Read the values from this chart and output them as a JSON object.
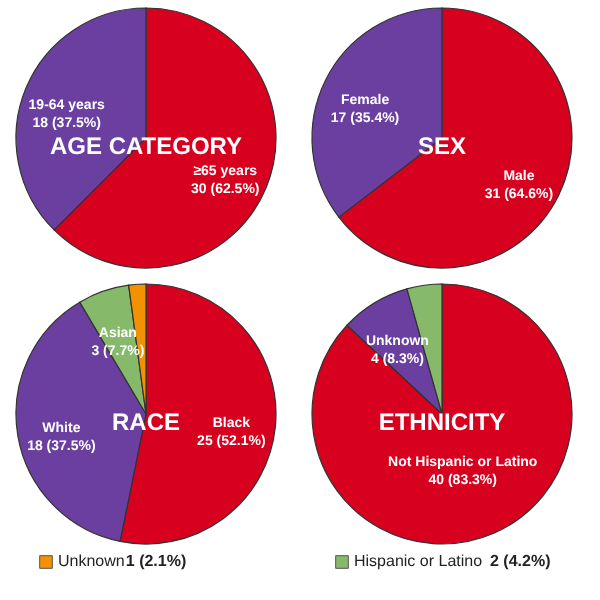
{
  "chart_data": [
    {
      "type": "pie",
      "title": "AGE CATEGORY",
      "categories": [
        "≥65 years",
        "19-64 years"
      ],
      "values": [
        30,
        18
      ],
      "value_labels": [
        "30 (62.5%)",
        "18 (37.5%)"
      ],
      "colors": [
        "#d7001f",
        "#6a3fa0"
      ]
    },
    {
      "type": "pie",
      "title": "SEX",
      "categories": [
        "Male",
        "Female"
      ],
      "values": [
        31,
        17
      ],
      "value_labels": [
        "31 (64.6%)",
        "17 (35.4%)"
      ],
      "colors": [
        "#d7001f",
        "#6a3fa0"
      ]
    },
    {
      "type": "pie",
      "title": "RACE",
      "categories": [
        "Black",
        "White",
        "Asian",
        "Unknown"
      ],
      "values": [
        25,
        18,
        3,
        1
      ],
      "value_labels": [
        "25 (52.1%)",
        "18 (37.5%)",
        "3 (7.7%)",
        "1 (2.1%)"
      ],
      "colors": [
        "#d7001f",
        "#6a3fa0",
        "#86b96a",
        "#f39200"
      ],
      "legend": "bottom"
    },
    {
      "type": "pie",
      "title": "ETHNICITY",
      "categories": [
        "Not Hispanic or Latino",
        "Unknown",
        "Hispanic or Latino"
      ],
      "values": [
        40,
        4,
        2
      ],
      "value_labels": [
        "40 (83.3%)",
        "4 (8.3%)",
        "2 (4.2%)"
      ],
      "colors": [
        "#d7001f",
        "#6a3fa0",
        "#86b96a"
      ],
      "legend": "bottom"
    }
  ]
}
